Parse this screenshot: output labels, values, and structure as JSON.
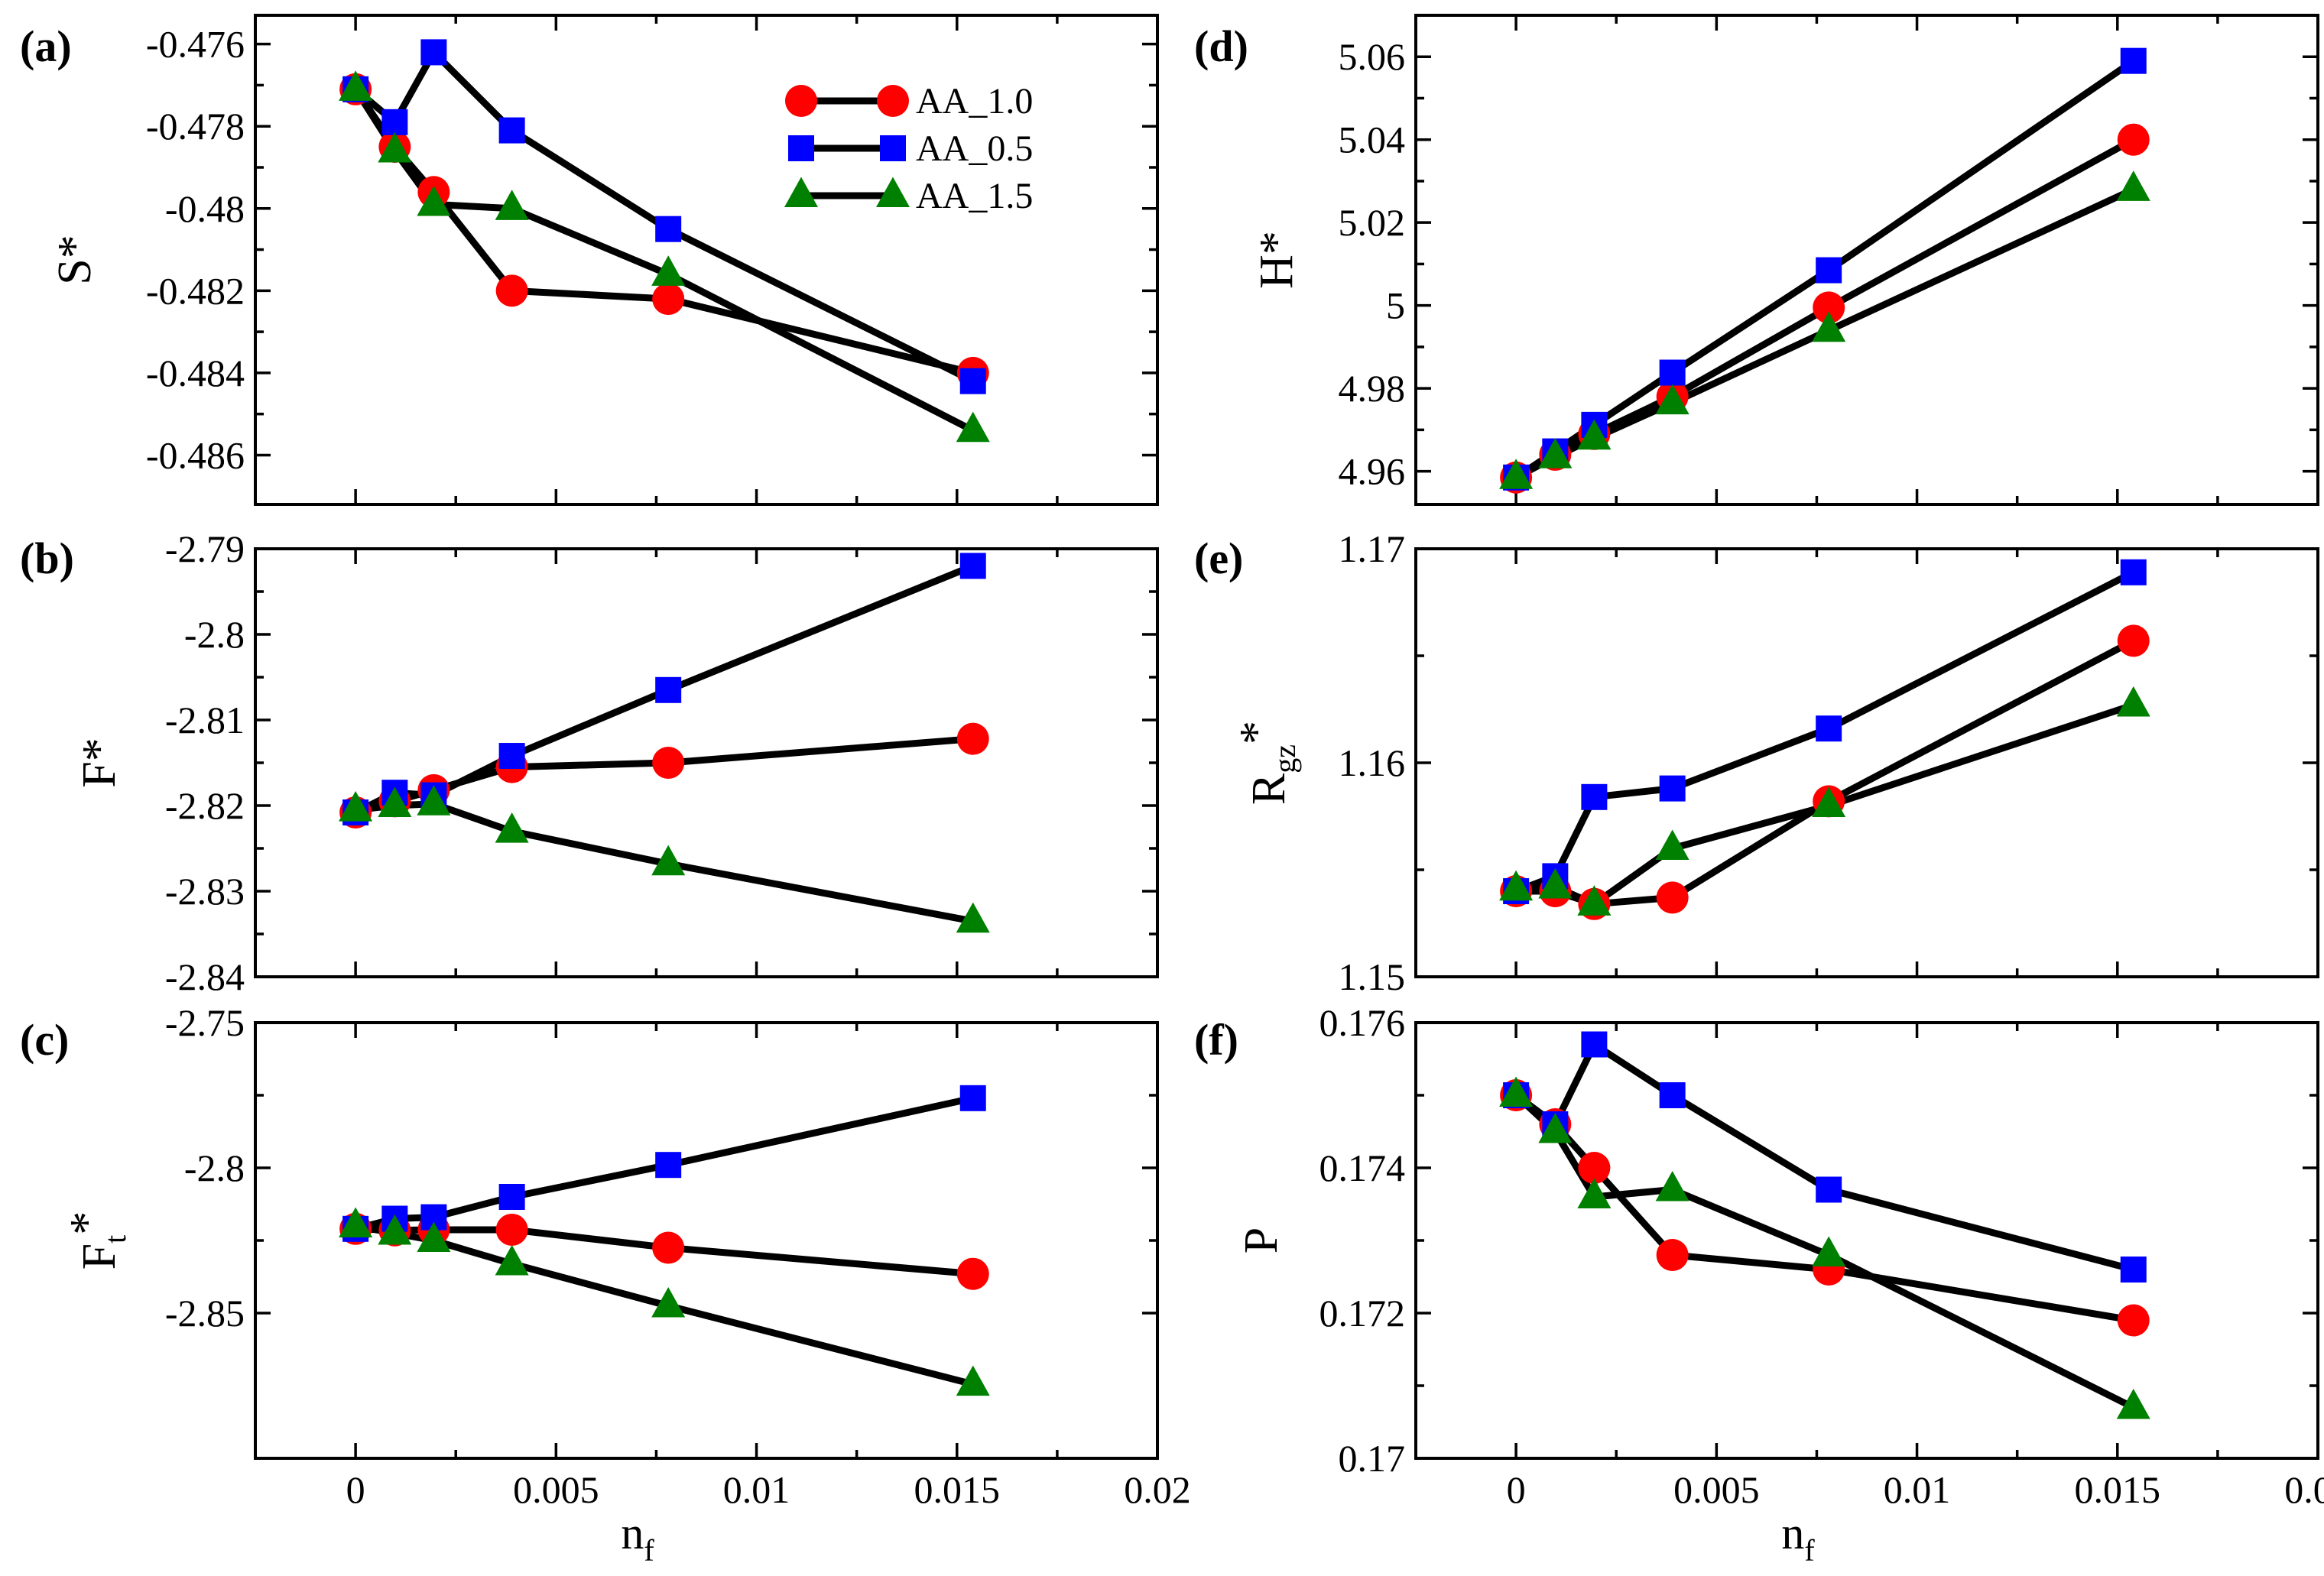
{
  "chart_data": [
    {
      "id": "a",
      "type": "line",
      "panel_label": "(a)",
      "ylabel": "S*",
      "xlabel": "",
      "xlim": [
        -0.0025,
        0.02
      ],
      "ylim": [
        -0.4872,
        -0.4753
      ],
      "yticks": [
        -0.476,
        -0.478,
        -0.48,
        -0.482,
        -0.484,
        -0.486
      ],
      "ytick_labels": [
        "-0.476",
        "-0.478",
        "-0.48",
        "-0.482",
        "-0.484",
        "-0.486"
      ],
      "show_xtick_labels": false,
      "series": [
        {
          "name": "AA_1.0",
          "x": [
            0,
            0.000977,
            0.00195,
            0.0039,
            0.0078,
            0.0154
          ],
          "values": [
            -0.4771,
            -0.4785,
            -0.4796,
            -0.482,
            -0.4822,
            -0.484
          ]
        },
        {
          "name": "AA_0.5",
          "x": [
            0,
            0.000977,
            0.00195,
            0.0039,
            0.0078,
            0.0154
          ],
          "values": [
            -0.4771,
            -0.4779,
            -0.4762,
            -0.4781,
            -0.4805,
            -0.4842
          ]
        },
        {
          "name": "AA_1.5",
          "x": [
            0,
            0.000977,
            0.00195,
            0.0039,
            0.0078,
            0.0154
          ],
          "values": [
            -0.4771,
            -0.4786,
            -0.4799,
            -0.48,
            -0.4816,
            -0.4854
          ]
        }
      ],
      "legend": true
    },
    {
      "id": "b",
      "type": "line",
      "panel_label": "(b)",
      "ylabel": "F*",
      "xlabel": "",
      "xlim": [
        -0.0025,
        0.02
      ],
      "ylim": [
        -2.84,
        -2.79
      ],
      "yticks": [
        -2.79,
        -2.8,
        -2.81,
        -2.82,
        -2.83,
        -2.84
      ],
      "ytick_labels": [
        "-2.79",
        "-2.8",
        "-2.81",
        "-2.82",
        "-2.83",
        "-2.84"
      ],
      "show_xtick_labels": false,
      "series": [
        {
          "name": "AA_1.0",
          "x": [
            0,
            0.000977,
            0.00195,
            0.0039,
            0.0078,
            0.0154
          ],
          "values": [
            -2.8208,
            -2.8195,
            -2.8182,
            -2.8155,
            -2.815,
            -2.8122
          ]
        },
        {
          "name": "AA_0.5",
          "x": [
            0,
            0.000977,
            0.00195,
            0.0039,
            0.0078,
            0.0154
          ],
          "values": [
            -2.8208,
            -2.8185,
            -2.8188,
            -2.8142,
            -2.8065,
            -2.792
          ]
        },
        {
          "name": "AA_1.5",
          "x": [
            0,
            0.000977,
            0.00195,
            0.0039,
            0.0078,
            0.0154
          ],
          "values": [
            -2.8205,
            -2.82,
            -2.8198,
            -2.823,
            -2.8268,
            -2.8335
          ]
        }
      ]
    },
    {
      "id": "c",
      "type": "line",
      "panel_label": "(c)",
      "ylabel": "F",
      "ylabel_sub": "t",
      "ylabel_sup": "*",
      "xlabel": "n",
      "xlabel_sub": "f",
      "xlim": [
        -0.0025,
        0.02
      ],
      "ylim": [
        -2.9,
        -2.75
      ],
      "yticks": [
        -2.75,
        -2.8,
        -2.85
      ],
      "ytick_labels": [
        "-2.75",
        "-2.8",
        "-2.85"
      ],
      "show_xtick_labels": true,
      "series": [
        {
          "name": "AA_1.0",
          "x": [
            0,
            0.000977,
            0.00195,
            0.0039,
            0.0078,
            0.0154
          ],
          "values": [
            -2.821,
            -2.8215,
            -2.8213,
            -2.8213,
            -2.8275,
            -2.8365
          ]
        },
        {
          "name": "AA_0.5",
          "x": [
            0,
            0.000977,
            0.00195,
            0.0039,
            0.0078,
            0.0154
          ],
          "values": [
            -2.821,
            -2.8175,
            -2.817,
            -2.81,
            -2.799,
            -2.776
          ]
        },
        {
          "name": "AA_1.5",
          "x": [
            0,
            0.000977,
            0.00195,
            0.0039,
            0.0078,
            0.0154
          ],
          "values": [
            -2.82,
            -2.8225,
            -2.825,
            -2.833,
            -2.8475,
            -2.8745
          ]
        }
      ]
    },
    {
      "id": "d",
      "type": "line",
      "panel_label": "(d)",
      "ylabel": "H*",
      "xlabel": "",
      "xlim": [
        -0.0025,
        0.02
      ],
      "ylim": [
        4.952,
        5.07
      ],
      "yticks": [
        4.96,
        4.98,
        5.0,
        5.02,
        5.04,
        5.06
      ],
      "ytick_labels": [
        "4.96",
        "4.98",
        "5",
        "5.02",
        "5.04",
        "5.06"
      ],
      "show_xtick_labels": false,
      "series": [
        {
          "name": "AA_1.0",
          "x": [
            0,
            0.000977,
            0.00195,
            0.0039,
            0.0078,
            0.0154
          ],
          "values": [
            4.9585,
            4.964,
            4.969,
            4.978,
            4.9995,
            5.04
          ]
        },
        {
          "name": "AA_0.5",
          "x": [
            0,
            0.000977,
            0.00195,
            0.0039,
            0.0078,
            0.0154
          ],
          "values": [
            4.9585,
            4.9648,
            4.9712,
            4.9838,
            5.0085,
            5.059
          ]
        },
        {
          "name": "AA_1.5",
          "x": [
            0,
            0.000977,
            0.00195,
            0.0039,
            0.0078,
            0.0154
          ],
          "values": [
            4.9585,
            4.9635,
            4.968,
            4.9765,
            4.994,
            5.028
          ]
        }
      ]
    },
    {
      "id": "e",
      "type": "line",
      "panel_label": "(e)",
      "ylabel": "R",
      "ylabel_sub": "gz",
      "ylabel_sup": "*",
      "xlabel": "",
      "xlim": [
        -0.0025,
        0.02
      ],
      "ylim": [
        1.15,
        1.17
      ],
      "yticks": [
        1.15,
        1.16,
        1.17
      ],
      "ytick_labels": [
        "1.15",
        "1.16",
        "1.17"
      ],
      "show_xtick_labels": false,
      "series": [
        {
          "name": "AA_1.0",
          "x": [
            0,
            0.000977,
            0.00195,
            0.0039,
            0.0078,
            0.0154
          ],
          "values": [
            1.154,
            1.154,
            1.1534,
            1.1537,
            1.1582,
            1.1657
          ]
        },
        {
          "name": "AA_0.5",
          "x": [
            0,
            0.000977,
            0.00195,
            0.0039,
            0.0078,
            0.0154
          ],
          "values": [
            1.154,
            1.1547,
            1.1584,
            1.1588,
            1.1616,
            1.1689
          ]
        },
        {
          "name": "AA_1.5",
          "x": [
            0,
            0.000977,
            0.00195,
            0.0039,
            0.0078,
            0.0154
          ],
          "values": [
            1.1541,
            1.1542,
            1.1534,
            1.156,
            1.158,
            1.1627
          ]
        }
      ]
    },
    {
      "id": "f",
      "type": "line",
      "panel_label": "(f)",
      "ylabel": "P",
      "xlabel": "n",
      "xlabel_sub": "f",
      "xlim": [
        -0.0025,
        0.02
      ],
      "ylim": [
        0.17,
        0.176
      ],
      "yticks": [
        0.17,
        0.172,
        0.174,
        0.176
      ],
      "ytick_labels": [
        "0.17",
        "0.172",
        "0.174",
        "0.176"
      ],
      "show_xtick_labels": true,
      "series": [
        {
          "name": "AA_1.0",
          "x": [
            0,
            0.000977,
            0.00195,
            0.0039,
            0.0078,
            0.0154
          ],
          "values": [
            0.175,
            0.1746,
            0.174,
            0.1728,
            0.1726,
            0.1719
          ]
        },
        {
          "name": "AA_0.5",
          "x": [
            0,
            0.000977,
            0.00195,
            0.0039,
            0.0078,
            0.0154
          ],
          "values": [
            0.175,
            0.1746,
            0.1757,
            0.175,
            0.1737,
            0.1726
          ]
        },
        {
          "name": "AA_1.5",
          "x": [
            0,
            0.000977,
            0.00195,
            0.0039,
            0.0078,
            0.0154
          ],
          "values": [
            0.175,
            0.1745,
            0.1736,
            0.1737,
            0.1728,
            0.1707
          ]
        }
      ]
    }
  ],
  "xticks": [
    0,
    0.005,
    0.01,
    0.015,
    0.02
  ],
  "xtick_labels": [
    "0",
    "0.005",
    "0.01",
    "0.015",
    "0.02"
  ],
  "series_styles": {
    "AA_1.0": {
      "color": "#ff0000",
      "marker": "circle"
    },
    "AA_0.5": {
      "color": "#0000ff",
      "marker": "square"
    },
    "AA_1.5": {
      "color": "#008000",
      "marker": "triangle"
    }
  },
  "legend_order": [
    "AA_1.0",
    "AA_0.5",
    "AA_1.5"
  ]
}
